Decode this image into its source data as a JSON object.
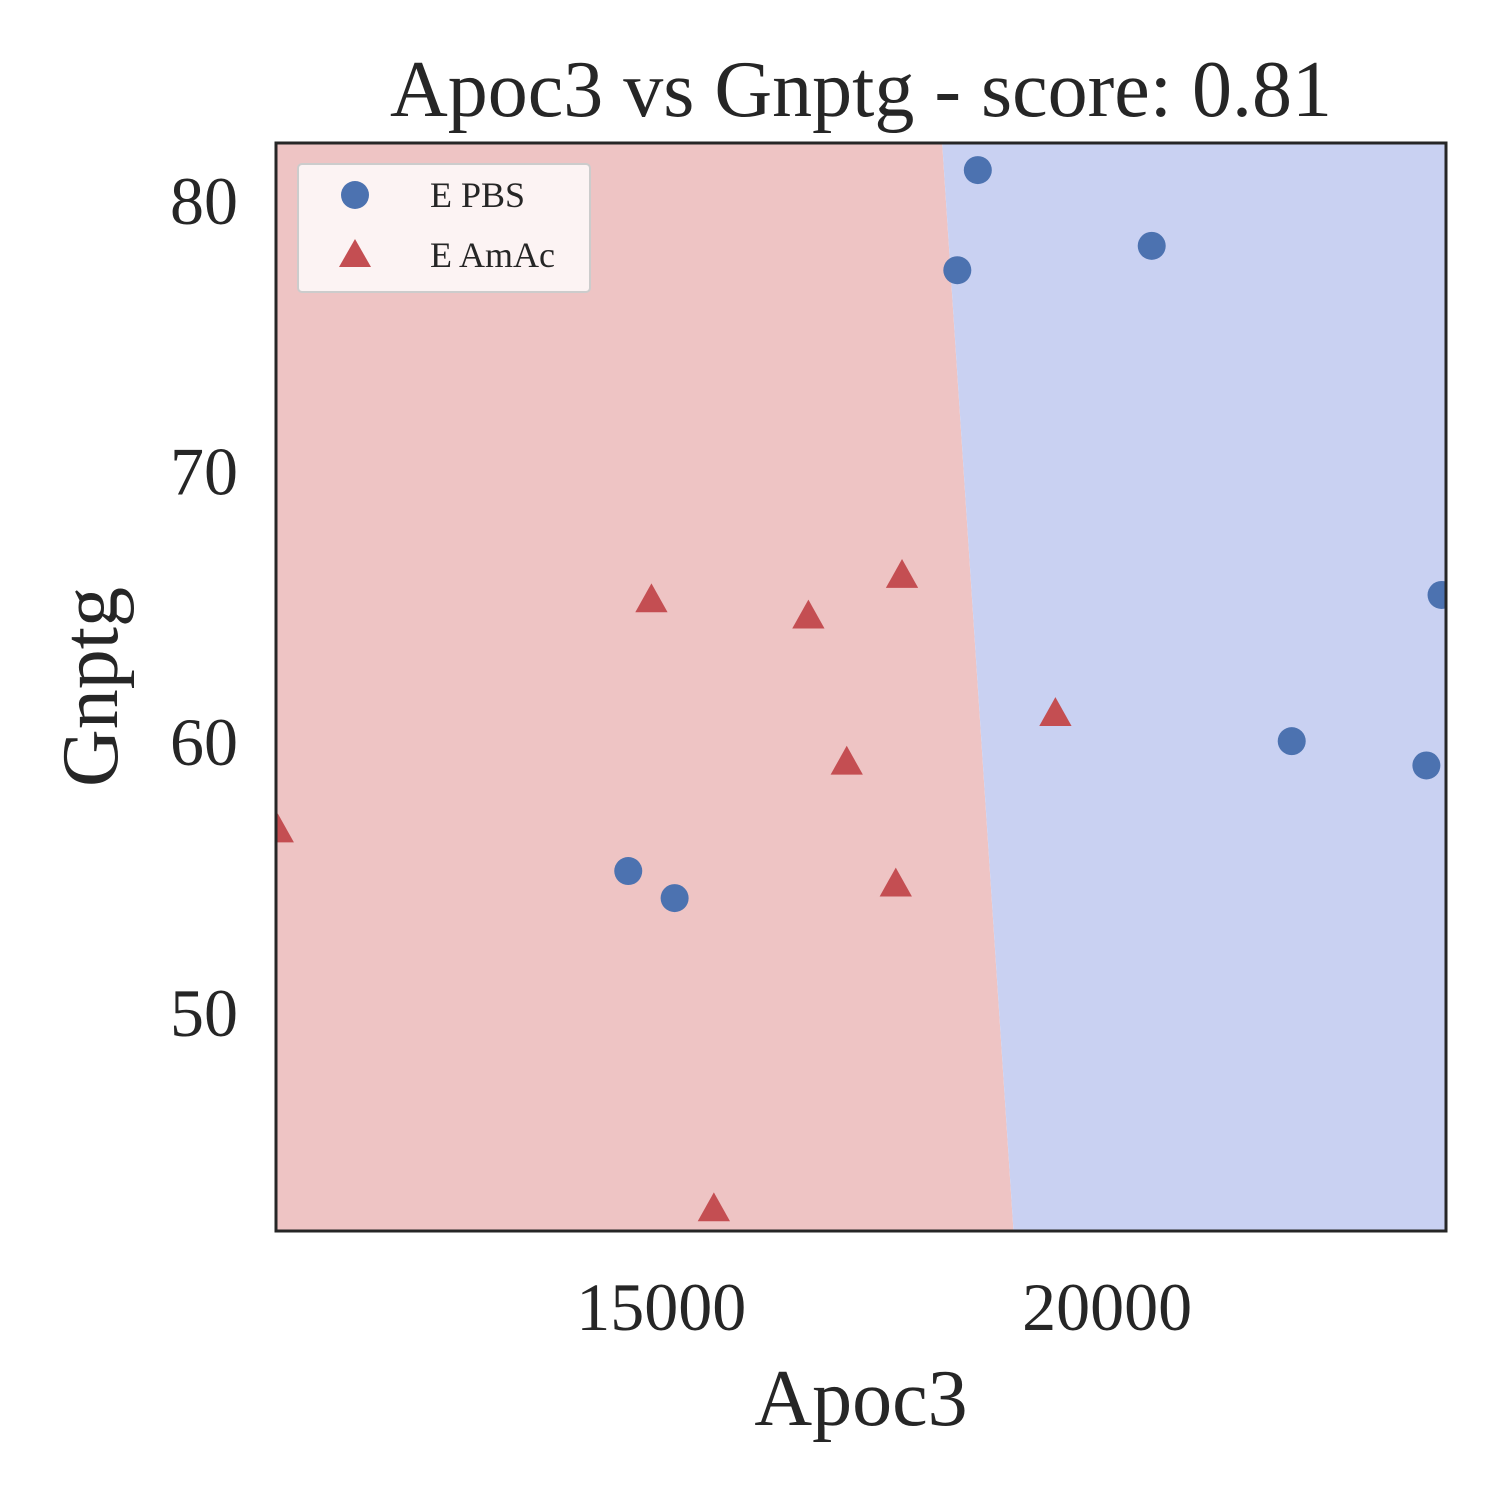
{
  "chart_data": {
    "type": "scatter",
    "title": "Apoc3 vs Gnptg - score: 0.81",
    "xlabel": "Apoc3",
    "ylabel": "Gnptg",
    "xlim": [
      10680,
      23800
    ],
    "ylim": [
      41.9,
      82.1
    ],
    "xticks": [
      15000,
      20000
    ],
    "xtick_labels": [
      "15000",
      "20000"
    ],
    "yticks": [
      50,
      60,
      70,
      80
    ],
    "ytick_labels": [
      "50",
      "60",
      "70",
      "80"
    ],
    "grid": false,
    "legend_position": "top-left",
    "decision_boundary": {
      "points": [
        [
          18150,
          82.1
        ],
        [
          18950,
          41.9
        ]
      ],
      "left_class": "E AmAc",
      "right_class": "E PBS"
    },
    "series": [
      {
        "name": "E PBS",
        "marker": "circle",
        "color": "#4c72b0",
        "region_color": "#c9d1f2",
        "points": [
          {
            "x": 18550,
            "y": 81.1
          },
          {
            "x": 18320,
            "y": 77.4
          },
          {
            "x": 20500,
            "y": 78.3
          },
          {
            "x": 23750,
            "y": 65.4
          },
          {
            "x": 22070,
            "y": 60.0
          },
          {
            "x": 23580,
            "y": 59.1
          },
          {
            "x": 14630,
            "y": 55.2
          },
          {
            "x": 15150,
            "y": 54.2
          }
        ]
      },
      {
        "name": "E AmAc",
        "marker": "triangle",
        "color": "#c44e52",
        "region_color": "#eec4c4",
        "points": [
          {
            "x": 14890,
            "y": 65.2
          },
          {
            "x": 16650,
            "y": 64.6
          },
          {
            "x": 17700,
            "y": 66.1
          },
          {
            "x": 19420,
            "y": 61.0
          },
          {
            "x": 17080,
            "y": 59.2
          },
          {
            "x": 10700,
            "y": 56.7
          },
          {
            "x": 17630,
            "y": 54.7
          },
          {
            "x": 15590,
            "y": 42.7
          }
        ]
      }
    ]
  }
}
